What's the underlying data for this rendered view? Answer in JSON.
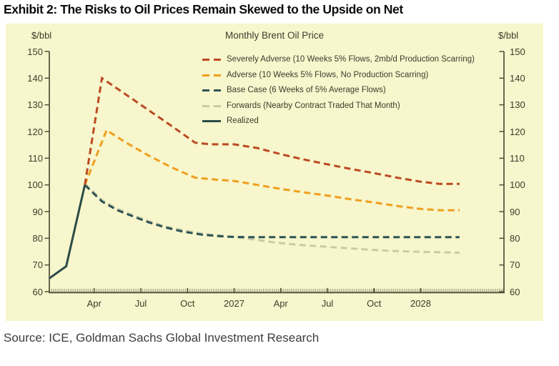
{
  "page": {
    "title": "Exhibit 2: The Risks to Oil Prices Remain Skewed to the Upside on Net",
    "source": "Source: ICE, Goldman Sachs Global Investment Research"
  },
  "chart_data": {
    "type": "line",
    "title": "Monthly Brent Oil Price",
    "y_axis_unit_left": "$/bbl",
    "y_axis_unit_right": "$/bbl",
    "ylim": [
      60,
      150
    ],
    "y_ticks": [
      60,
      70,
      80,
      90,
      100,
      110,
      120,
      130,
      140,
      150
    ],
    "x_unit": "months since Jan 2026",
    "x_ticks": [
      {
        "m": 3,
        "label": "Apr"
      },
      {
        "m": 6,
        "label": "Jul"
      },
      {
        "m": 9,
        "label": "Oct"
      },
      {
        "m": 12,
        "label": "2027"
      },
      {
        "m": 15,
        "label": "Apr"
      },
      {
        "m": 18,
        "label": "Jul"
      },
      {
        "m": 21,
        "label": "Oct"
      },
      {
        "m": 24,
        "label": "2028"
      }
    ],
    "grid": false,
    "legend_position": "top-center",
    "panel_background": "#f7f6cc",
    "axis_color": "#50503a",
    "series": [
      {
        "name": "Forwards (Nearby Contract Traded That Month)",
        "color": "#c8cba6",
        "style": "dashed",
        "points": [
          [
            2.4,
            100.5
          ],
          [
            3.5,
            94.3
          ],
          [
            4.5,
            91
          ],
          [
            5.5,
            88.7
          ],
          [
            6.5,
            86.4
          ],
          [
            7.5,
            84.6
          ],
          [
            8.7,
            83
          ],
          [
            10,
            81.7
          ],
          [
            11.5,
            80.8
          ],
          [
            13,
            79.8
          ],
          [
            14.5,
            78.5
          ],
          [
            16,
            77.6
          ],
          [
            17.5,
            77
          ],
          [
            19,
            76.4
          ],
          [
            20.5,
            75.8
          ],
          [
            22,
            75.3
          ],
          [
            23.5,
            75
          ],
          [
            25,
            74.8
          ],
          [
            26.5,
            74.6
          ]
        ]
      },
      {
        "name": "Base Case (6 Weeks of 5% Average Flows)",
        "color": "#2e5356",
        "style": "dashed",
        "points": [
          [
            2.4,
            100
          ],
          [
            3.5,
            93.8
          ],
          [
            4.5,
            90.5
          ],
          [
            5.5,
            88.2
          ],
          [
            6.5,
            86
          ],
          [
            7.5,
            84.2
          ],
          [
            8.7,
            82.5
          ],
          [
            10,
            81.3
          ],
          [
            11.5,
            80.6
          ],
          [
            13,
            80.4
          ],
          [
            16,
            80.4
          ],
          [
            19,
            80.4
          ],
          [
            22,
            80.4
          ],
          [
            25,
            80.4
          ],
          [
            26.5,
            80.4
          ]
        ]
      },
      {
        "name": "Adverse (10 Weeks 5% Flows, No Production Scarring)",
        "color": "#f09e1e",
        "style": "dashed",
        "points": [
          [
            2.4,
            100
          ],
          [
            3.8,
            120.5
          ],
          [
            5,
            116
          ],
          [
            6.5,
            111
          ],
          [
            8,
            106.5
          ],
          [
            9.5,
            102.7
          ],
          [
            10.8,
            102
          ],
          [
            12,
            101.5
          ],
          [
            13.5,
            100
          ],
          [
            15,
            98.5
          ],
          [
            16.5,
            97.2
          ],
          [
            18,
            96
          ],
          [
            19.5,
            94.6
          ],
          [
            21,
            93.4
          ],
          [
            22.5,
            92.1
          ],
          [
            24,
            91
          ],
          [
            25.2,
            90.5
          ],
          [
            26.5,
            90.5
          ]
        ]
      },
      {
        "name": "Severely Adverse (10 Weeks 5% Flows, 2mb/d Production Scarring)",
        "color": "#bb4a22",
        "style": "dashed",
        "points": [
          [
            2.4,
            100
          ],
          [
            3.5,
            140
          ],
          [
            5,
            134
          ],
          [
            6.5,
            128
          ],
          [
            8,
            122
          ],
          [
            9.5,
            115.8
          ],
          [
            10.5,
            115.2
          ],
          [
            12,
            115.2
          ],
          [
            13.5,
            113.8
          ],
          [
            15,
            111.5
          ],
          [
            16.5,
            109.5
          ],
          [
            18,
            107.7
          ],
          [
            19.5,
            106
          ],
          [
            21,
            104.4
          ],
          [
            22.5,
            102.7
          ],
          [
            24,
            101.2
          ],
          [
            25.2,
            100.4
          ],
          [
            26.5,
            100.4
          ]
        ]
      },
      {
        "name": "Realized",
        "color": "#2b4c47",
        "style": "solid",
        "points": [
          [
            0.12,
            65
          ],
          [
            1.2,
            69.5
          ],
          [
            2.4,
            100
          ]
        ]
      }
    ],
    "legend_order": [
      "Severely Adverse (10 Weeks 5% Flows, 2mb/d Production Scarring)",
      "Adverse (10 Weeks 5% Flows, No Production Scarring)",
      "Base Case (6 Weeks of 5% Average Flows)",
      "Forwards (Nearby Contract Traded That Month)",
      "Realized"
    ]
  }
}
